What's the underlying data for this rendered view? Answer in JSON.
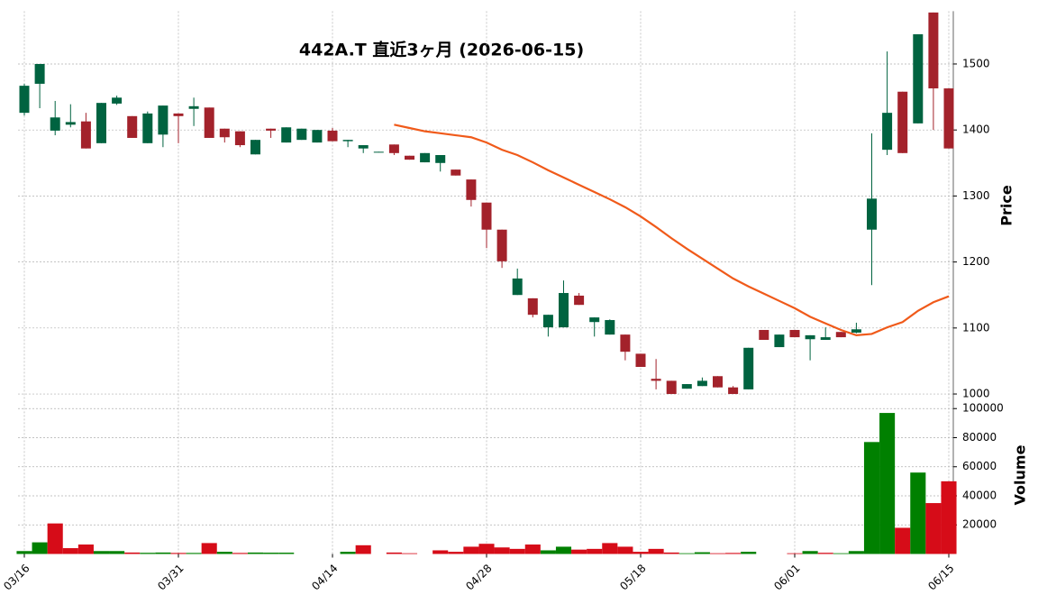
{
  "chart_data": {
    "type": "candlestick",
    "title": "442A.T 直近3ヶ月 (2026-06-15)",
    "ylabel": "Price",
    "categories": [
      "03/16",
      null,
      null,
      null,
      null,
      null,
      null,
      null,
      null,
      null,
      "03/31",
      null,
      null,
      null,
      null,
      null,
      null,
      null,
      null,
      null,
      "04/14",
      null,
      null,
      null,
      null,
      null,
      null,
      null,
      null,
      null,
      "04/28",
      null,
      null,
      null,
      null,
      null,
      null,
      null,
      null,
      null,
      "05/18",
      null,
      null,
      null,
      null,
      null,
      null,
      null,
      null,
      null,
      "06/01",
      null,
      null,
      null,
      null,
      null,
      null,
      null,
      null,
      null,
      "06/15"
    ],
    "open": [
      1426,
      1470,
      1399,
      1408,
      1413,
      1380,
      1440,
      1421,
      1380,
      1393,
      1425,
      1432,
      1434,
      1402,
      1398,
      1363,
      1402,
      1381,
      1385,
      1381,
      1399,
      1383,
      1372,
      1366,
      1378,
      1361,
      1351,
      1350,
      1340,
      1325,
      1290,
      1249,
      1150,
      1145,
      1101,
      1101,
      1149,
      1109,
      1090,
      1090,
      1061,
      1023,
      1020,
      1008,
      1012,
      1027,
      1010,
      1007,
      1097,
      1071,
      1097,
      1083,
      1082,
      1094,
      1093,
      1249,
      1370,
      1458,
      1410,
      1578,
      1463
    ],
    "high": [
      1470,
      1500,
      1444,
      1439,
      1426,
      1441,
      1452,
      1421,
      1428,
      1437,
      1425,
      1449,
      1434,
      1402,
      1398,
      1385,
      1402,
      1404,
      1402,
      1400,
      1403,
      1385,
      1377,
      1367,
      1378,
      1361,
      1365,
      1362,
      1340,
      1325,
      1290,
      1249,
      1190,
      1145,
      1120,
      1172,
      1153,
      1116,
      1113,
      1090,
      1061,
      1053,
      1020,
      1015,
      1025,
      1027,
      1012,
      1070,
      1097,
      1090,
      1097,
      1089,
      1101,
      1094,
      1108,
      1395,
      1519,
      1458,
      1545,
      1578,
      1463
    ],
    "low": [
      1422,
      1433,
      1392,
      1404,
      1372,
      1380,
      1438,
      1388,
      1380,
      1374,
      1380,
      1406,
      1388,
      1381,
      1374,
      1363,
      1388,
      1381,
      1385,
      1381,
      1383,
      1374,
      1365,
      1366,
      1362,
      1355,
      1351,
      1337,
      1331,
      1284,
      1221,
      1191,
      1150,
      1116,
      1087,
      1101,
      1135,
      1087,
      1090,
      1051,
      1041,
      1007,
      1000,
      1008,
      1012,
      1010,
      1000,
      1007,
      1082,
      1071,
      1086,
      1051,
      1082,
      1086,
      1092,
      1165,
      1362,
      1365,
      1410,
      1400,
      1372
    ],
    "close": [
      1467,
      1500,
      1419,
      1412,
      1372,
      1441,
      1449,
      1388,
      1425,
      1437,
      1421,
      1436,
      1388,
      1389,
      1377,
      1385,
      1399,
      1404,
      1402,
      1400,
      1383,
      1385,
      1377,
      1367,
      1365,
      1355,
      1365,
      1362,
      1331,
      1294,
      1249,
      1201,
      1175,
      1120,
      1120,
      1153,
      1135,
      1116,
      1112,
      1064,
      1041,
      1020,
      1000,
      1015,
      1020,
      1010,
      1000,
      1070,
      1082,
      1090,
      1086,
      1089,
      1086,
      1086,
      1098,
      1296,
      1426,
      1365,
      1545,
      1463,
      1372
    ],
    "up_color": "#006340",
    "down_color": "#a3222b",
    "ylim": [
      995,
      1580
    ],
    "yticks": [
      1000,
      1100,
      1200,
      1300,
      1400,
      1500
    ],
    "grid": true,
    "moving_average": {
      "color": "#f05a1a",
      "values": [
        null,
        null,
        null,
        null,
        null,
        null,
        null,
        null,
        null,
        null,
        null,
        null,
        null,
        null,
        null,
        null,
        null,
        null,
        null,
        null,
        null,
        null,
        null,
        null,
        1408,
        1403,
        1398,
        1395,
        1392,
        1389,
        1381,
        1370,
        1362,
        1351,
        1339,
        1328,
        1317,
        1306,
        1295,
        1283,
        1269,
        1253,
        1236,
        1220,
        1205,
        1190,
        1175,
        1163,
        1152,
        1141,
        1130,
        1117,
        1107,
        1097,
        1089,
        1091,
        1101,
        1109,
        1126,
        1139,
        1148
      ]
    },
    "volume": {
      "ylabel": "Volume",
      "values": [
        2000,
        8000,
        21000,
        4000,
        6500,
        2000,
        2000,
        1000,
        800,
        1000,
        700,
        700,
        7500,
        1500,
        700,
        1000,
        900,
        900,
        0,
        0,
        0,
        1500,
        6000,
        0,
        1000,
        500,
        0,
        2500,
        1500,
        5000,
        7000,
        4500,
        3500,
        6500,
        2500,
        5000,
        3000,
        3500,
        7500,
        5000,
        1500,
        3500,
        1000,
        500,
        1200,
        500,
        700,
        1500,
        0,
        0,
        500,
        2000,
        800,
        500,
        2000,
        77000,
        97000,
        18000,
        56000,
        35000,
        50000
      ],
      "up_color": "#008000",
      "down_color": "#d60c18",
      "ylim": [
        0,
        103000
      ],
      "yticks": [
        20000,
        40000,
        60000,
        80000,
        100000
      ]
    }
  }
}
